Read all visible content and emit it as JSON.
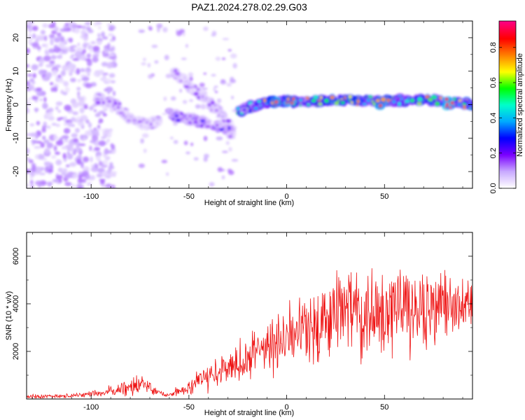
{
  "title": "PAZ1.2024.278.02.29.G03",
  "chart_data": [
    {
      "type": "heatmap",
      "xlabel": "Height of straight line (km)",
      "ylabel": "Frequency (Hz)",
      "xlim": [
        -133,
        95
      ],
      "ylim": [
        -25,
        25
      ],
      "xticks": [
        -100,
        -50,
        0,
        50
      ],
      "yticks": [
        -20,
        -10,
        0,
        10,
        20
      ],
      "colorbar": {
        "label": "Normalized spectral amplitude",
        "range": [
          0,
          0.95
        ],
        "ticks": [
          0.0,
          0.2,
          0.4,
          0.6,
          0.8
        ],
        "colormap": [
          "#ffffff",
          "#c8a8ff",
          "#7a00ff",
          "#0000ff",
          "#00aaff",
          "#00ffcc",
          "#00ff00",
          "#ffff00",
          "#ff8000",
          "#ff0000",
          "#ff0080"
        ]
      },
      "ridges": [
        {
          "x": [
            -98,
            -88,
            -80,
            -72,
            -65
          ],
          "y": [
            2,
            0,
            -4,
            -6,
            -5
          ],
          "amplitude": 0.12
        },
        {
          "x": [
            -58,
            -50,
            -42,
            -35,
            -30,
            -27
          ],
          "y": [
            10,
            6,
            2,
            -2,
            -6,
            -7
          ],
          "amplitude": 0.12
        },
        {
          "x": [
            -60,
            -50,
            -40,
            -32,
            -27
          ],
          "y": [
            -3,
            -4,
            -6,
            -7,
            -9
          ],
          "amplitude": 0.2
        },
        {
          "x": [
            -25,
            -15,
            -5,
            0,
            10,
            25,
            45,
            65,
            80,
            95
          ],
          "y": [
            -2,
            0,
            1,
            1,
            1,
            1.5,
            1,
            1.5,
            1,
            0
          ],
          "amplitude": 0.55
        },
        {
          "x": [
            -6,
            2,
            48,
            83
          ],
          "y": [
            0.5,
            1,
            0.5,
            0.5
          ],
          "amplitude": 0.9
        }
      ],
      "noise_region": {
        "x": [
          -133,
          -88
        ],
        "y": [
          -25,
          25
        ],
        "amplitude": 0.1
      }
    },
    {
      "type": "line",
      "xlabel": "Height of straight line (km)",
      "ylabel": "SNR (10 * v/v)",
      "xlim": [
        -133,
        95
      ],
      "ylim": [
        0,
        7000
      ],
      "xticks": [
        -100,
        -50,
        0,
        50
      ],
      "yticks": [
        2000,
        4000,
        6000
      ],
      "series": [
        {
          "color": "#ee1111",
          "envelope": {
            "x": [
              -133,
              -110,
              -95,
              -85,
              -75,
              -65,
              -60,
              -50,
              -40,
              -30,
              -20,
              -10,
              0,
              10,
              20,
              30,
              40,
              50,
              60,
              70,
              80,
              95
            ],
            "mean": [
              100,
              130,
              250,
              450,
              650,
              250,
              150,
              500,
              900,
              1300,
              1700,
              2100,
              2500,
              3000,
              3300,
              3700,
              3800,
              3800,
              3800,
              3700,
              3800,
              3900
            ],
            "amp": [
              100,
              120,
              200,
              400,
              600,
              150,
              120,
              500,
              800,
              1000,
              1300,
              1500,
              1700,
              1900,
              2200,
              2500,
              2500,
              2500,
              2500,
              2300,
              2100,
              1100
            ]
          }
        }
      ]
    }
  ]
}
